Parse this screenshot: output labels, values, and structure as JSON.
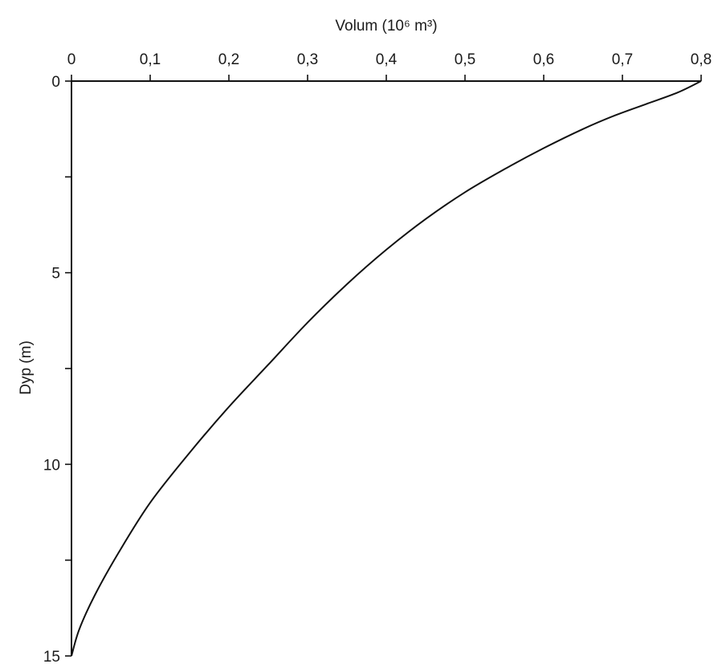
{
  "chart_data": {
    "type": "line",
    "title": "",
    "xlabel": "Volum (10⁶ m³)",
    "ylabel": "Dyp (m)",
    "x_axis_position": "top",
    "y_axis_inverted": true,
    "xlim": [
      0,
      0.8
    ],
    "ylim": [
      0,
      15
    ],
    "x_ticks": [
      0,
      0.1,
      0.2,
      0.3,
      0.4,
      0.5,
      0.6,
      0.7,
      0.8
    ],
    "x_tick_labels": [
      "0",
      "0,1",
      "0,2",
      "0,3",
      "0,4",
      "0,5",
      "0,6",
      "0,7",
      "0,8"
    ],
    "y_ticks": [
      0,
      2.5,
      5,
      7.5,
      10,
      12.5,
      15
    ],
    "y_tick_labels": [
      "0",
      "",
      "5",
      "",
      "10",
      "",
      "15"
    ],
    "grid": false,
    "series": [
      {
        "x": [
          0.8,
          0.77,
          0.73,
          0.69,
          0.65,
          0.6,
          0.55,
          0.5,
          0.45,
          0.4,
          0.35,
          0.3,
          0.25,
          0.2,
          0.15,
          0.1,
          0.06,
          0.03,
          0.01,
          0.0
        ],
        "y": [
          0,
          0.3,
          0.6,
          0.9,
          1.25,
          1.75,
          2.3,
          2.9,
          3.6,
          4.4,
          5.3,
          6.3,
          7.4,
          8.5,
          9.7,
          11.0,
          12.3,
          13.4,
          14.3,
          15.0
        ]
      }
    ]
  }
}
